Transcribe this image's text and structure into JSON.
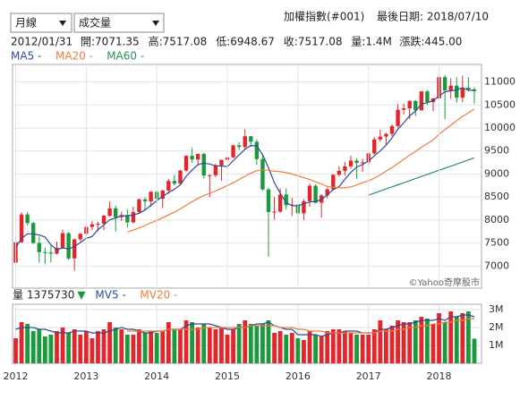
{
  "header": {
    "period_select": "月線",
    "indicator_select": "成交量",
    "title": "加權指數(#001)",
    "last_date": "最後日期: 2018/07/10",
    "info": [
      "2012/01/31",
      "開:7071.35",
      "高:7517.08",
      "低:6948.67",
      "收:7517.08",
      "量:1.4M",
      "漲跌:445.00"
    ],
    "watermark": "©Yahoo奇摩股市"
  },
  "chart_data": [
    {
      "type": "candlestick",
      "up_color": "#e3262b",
      "down_color": "#1a9a3d",
      "open": [
        7071.35,
        7517,
        8121,
        7933,
        7501,
        7301,
        7296,
        7270,
        7397,
        7715,
        7166,
        7580,
        7700,
        7850,
        7907,
        7919,
        8094,
        8254,
        8062,
        8108,
        7948,
        8173,
        8450,
        8407,
        8612,
        8462,
        8640,
        8849,
        8791,
        9075,
        9393,
        9315,
        9436,
        8966,
        8974,
        9187,
        9307,
        9361,
        9622,
        9586,
        9820,
        9701,
        9323,
        8665,
        8174,
        8181,
        8554,
        8320,
        8338,
        8145,
        8411,
        8744,
        8377,
        8536,
        8666,
        8984,
        9069,
        9166,
        9290,
        9240,
        9254,
        9448,
        9750,
        9812,
        9872,
        10041,
        10395,
        10427,
        10586,
        10383,
        10794,
        10560,
        10643,
        11104,
        10815,
        10919,
        10658,
        10875,
        10837
      ],
      "high": [
        7517.08,
        8170,
        8170,
        7960,
        7640,
        7400,
        7440,
        7530,
        7790,
        7740,
        7600,
        7720,
        7890,
        7980,
        7960,
        8110,
        8400,
        8310,
        8180,
        8230,
        8290,
        8470,
        8490,
        8630,
        8650,
        8660,
        8890,
        8980,
        9090,
        9410,
        9570,
        9440,
        9460,
        8990,
        9220,
        9310,
        9430,
        9630,
        9690,
        9970,
        9830,
        9750,
        9400,
        8700,
        8500,
        8690,
        8690,
        8480,
        8350,
        8450,
        8790,
        8780,
        8560,
        8710,
        8990,
        9170,
        9260,
        9400,
        9340,
        9330,
        9460,
        9800,
        9960,
        9890,
        10080,
        10520,
        10530,
        10600,
        10610,
        10800,
        10830,
        10650,
        11270,
        11150,
        11080,
        11100,
        11140,
        11100,
        10880
      ],
      "low": [
        6948.67,
        7500,
        7880,
        7480,
        7070,
        7050,
        7080,
        7250,
        7370,
        7130,
        6900,
        7540,
        7650,
        7780,
        7760,
        7780,
        8070,
        7750,
        7980,
        7840,
        7930,
        8150,
        8200,
        8290,
        8360,
        8260,
        8570,
        8750,
        8770,
        9050,
        9240,
        9180,
        8900,
        8500,
        8930,
        8850,
        9200,
        9340,
        9520,
        9530,
        9590,
        9200,
        8640,
        7203,
        8010,
        8160,
        8230,
        8090,
        7628,
        8000,
        8290,
        8360,
        8050,
        8470,
        8640,
        8950,
        8970,
        9120,
        8900,
        9050,
        9180,
        9420,
        9700,
        9630,
        9820,
        10010,
        10290,
        10190,
        10260,
        10380,
        10500,
        10360,
        10600,
        10189,
        10640,
        10550,
        10560,
        10790,
        10530
      ],
      "close": [
        7517.08,
        8121,
        7933,
        7501,
        7301,
        7296,
        7270,
        7397,
        7715,
        7166,
        7580,
        7700,
        7850,
        7907,
        7919,
        8094,
        8254,
        8062,
        8108,
        7948,
        8173,
        8450,
        8407,
        8612,
        8462,
        8640,
        8849,
        8791,
        9075,
        9393,
        9315,
        9436,
        8966,
        8974,
        9187,
        9307,
        9361,
        9622,
        9586,
        9820,
        9701,
        9323,
        8665,
        8174,
        8181,
        8554,
        8320,
        8338,
        8145,
        8411,
        8744,
        8377,
        8536,
        8666,
        8984,
        9069,
        9166,
        9290,
        9240,
        9254,
        9448,
        9750,
        9812,
        9872,
        10041,
        10395,
        10427,
        10586,
        10383,
        10794,
        10560,
        10643,
        11104,
        10815,
        10919,
        10658,
        10875,
        10837,
        10800
      ],
      "series": [
        {
          "name": "MA5 -",
          "color": "#2b4c9b",
          "values": [
            7400,
            7600,
            7700,
            7700,
            7675,
            7630,
            7460,
            7353,
            7396,
            7369,
            7426,
            7512,
            7602,
            7641,
            7791,
            7894,
            8005,
            8047,
            8087,
            8093,
            8109,
            8148,
            8217,
            8318,
            8421,
            8514,
            8594,
            8671,
            8763,
            8950,
            9085,
            9202,
            9237,
            9217,
            9176,
            9174,
            9159,
            9290,
            9413,
            9539,
            9618,
            9610,
            9419,
            9137,
            8809,
            8579,
            8379,
            8313,
            8308,
            8354,
            8392,
            8403,
            8443,
            8547,
            8661,
            8726,
            8884,
            9035,
            9150,
            9204,
            9280,
            9396,
            9501,
            9627,
            9785,
            9974,
            10109,
            10264,
            10366,
            10517,
            10550,
            10593,
            10697,
            10783,
            10808,
            10828,
            10874,
            10821,
            10818
          ]
        },
        {
          "name": "MA20 -",
          "color": "#f07c3a",
          "values": [
            null,
            null,
            null,
            null,
            null,
            null,
            null,
            null,
            null,
            null,
            null,
            null,
            null,
            null,
            null,
            null,
            null,
            null,
            null,
            7740,
            7780,
            7830,
            7880,
            7940,
            7990,
            8050,
            8110,
            8170,
            8240,
            8320,
            8400,
            8470,
            8530,
            8580,
            8630,
            8690,
            8750,
            8810,
            8880,
            8950,
            9020,
            9070,
            9090,
            9080,
            9060,
            9050,
            9030,
            9000,
            8960,
            8920,
            8880,
            8830,
            8780,
            8730,
            8710,
            8700,
            8700,
            8720,
            8760,
            8810,
            8850,
            8910,
            8980,
            9060,
            9140,
            9230,
            9320,
            9410,
            9490,
            9580,
            9660,
            9740,
            9860,
            9960,
            10060,
            10160,
            10250,
            10330,
            10410
          ]
        },
        {
          "name": "MA60 -",
          "color": "#2f9158",
          "values": [
            null,
            null,
            null,
            null,
            null,
            null,
            null,
            null,
            null,
            null,
            null,
            null,
            null,
            null,
            null,
            null,
            null,
            null,
            null,
            null,
            null,
            null,
            null,
            null,
            null,
            null,
            null,
            null,
            null,
            null,
            null,
            null,
            null,
            null,
            null,
            null,
            null,
            null,
            null,
            null,
            null,
            null,
            null,
            null,
            null,
            null,
            null,
            null,
            null,
            null,
            null,
            null,
            null,
            null,
            null,
            null,
            null,
            null,
            null,
            null,
            8540,
            8585,
            8630,
            8675,
            8720,
            8765,
            8810,
            8855,
            8900,
            8945,
            8990,
            9035,
            9080,
            9125,
            9170,
            9215,
            9260,
            9305,
            9350
          ]
        }
      ],
      "ylim": [
        6520,
        11380
      ],
      "yticks": [
        7000,
        7500,
        8000,
        8500,
        9000,
        9500,
        10000,
        10500,
        11000
      ],
      "grid": true
    },
    {
      "type": "bar",
      "label": "量",
      "current": 1375730,
      "trend_symbol": "▼",
      "trend_color": "#1a9a3d",
      "categories": [
        "2012",
        null,
        null,
        null,
        null,
        null,
        null,
        null,
        null,
        null,
        null,
        null,
        "2013",
        null,
        null,
        null,
        null,
        null,
        null,
        null,
        null,
        null,
        null,
        null,
        "2014",
        null,
        null,
        null,
        null,
        null,
        null,
        null,
        null,
        null,
        null,
        null,
        "2015",
        null,
        null,
        null,
        null,
        null,
        null,
        null,
        null,
        null,
        null,
        null,
        "2016",
        null,
        null,
        null,
        null,
        null,
        null,
        null,
        null,
        null,
        null,
        null,
        "2017",
        null,
        null,
        null,
        null,
        null,
        null,
        null,
        null,
        null,
        null,
        null,
        "2018",
        null,
        null,
        null,
        null,
        null,
        null
      ],
      "values": [
        1400000,
        2300000,
        2200000,
        1800000,
        1900000,
        1500000,
        1600000,
        1800000,
        2000000,
        1700000,
        1900000,
        1600000,
        1800000,
        1400000,
        1800000,
        1900000,
        2300000,
        2000000,
        1900000,
        1600000,
        1600000,
        1900000,
        1700000,
        1800000,
        1700000,
        1800000,
        2300000,
        1900000,
        1900000,
        2400000,
        2300000,
        2000000,
        2200000,
        2000000,
        1900000,
        2000000,
        1600000,
        1900000,
        2200000,
        2400000,
        2200000,
        2100000,
        2200000,
        2400000,
        1700000,
        1800000,
        1600000,
        1700000,
        1400000,
        1300000,
        1800000,
        1600000,
        1500000,
        1800000,
        1900000,
        1900000,
        1800000,
        1700000,
        1600000,
        1600000,
        1600000,
        1900000,
        2400000,
        1900000,
        2100000,
        2400000,
        2300000,
        2300000,
        2400000,
        2600000,
        2500000,
        2200000,
        2800000,
        2300000,
        2900000,
        2600000,
        2800000,
        2900000,
        1375730
      ],
      "series": [
        {
          "name": "MV5 -",
          "color": "#2b4c9b",
          "values": [
            1900000,
            2000000,
            2000000,
            2000000,
            1900000,
            1900000,
            1800000,
            1700000,
            1700000,
            1700000,
            1800000,
            1800000,
            1800000,
            1700000,
            1700000,
            1700000,
            1800000,
            1900000,
            2000000,
            1900000,
            1900000,
            1800000,
            1700000,
            1700000,
            1800000,
            1800000,
            1900000,
            1900000,
            1900000,
            2100000,
            2200000,
            2200000,
            2200000,
            2200000,
            2100000,
            2000000,
            1900000,
            1900000,
            2000000,
            2000000,
            2100000,
            2200000,
            2200000,
            2300000,
            2100000,
            2000000,
            1900000,
            1900000,
            1600000,
            1600000,
            1600000,
            1600000,
            1500000,
            1600000,
            1700000,
            1700000,
            1800000,
            1800000,
            1800000,
            1700000,
            1700000,
            1700000,
            1900000,
            1900000,
            2000000,
            2100000,
            2200000,
            2200000,
            2300000,
            2400000,
            2400000,
            2400000,
            2500000,
            2400000,
            2600000,
            2600000,
            2700000,
            2700000,
            2600000
          ]
        },
        {
          "name": "MV20 -",
          "color": "#f07c3a",
          "values": [
            null,
            null,
            null,
            null,
            null,
            null,
            null,
            null,
            null,
            null,
            null,
            null,
            null,
            null,
            null,
            null,
            null,
            null,
            null,
            1800000,
            1800000,
            1800000,
            1800000,
            1800000,
            1800000,
            1800000,
            1900000,
            1900000,
            1900000,
            1900000,
            1900000,
            1900000,
            2000000,
            2000000,
            2000000,
            2000000,
            2000000,
            2000000,
            2000000,
            2000000,
            2100000,
            2100000,
            2100000,
            2100000,
            2100000,
            2000000,
            2000000,
            2000000,
            1900000,
            1900000,
            1800000,
            1800000,
            1800000,
            1700000,
            1700000,
            1700000,
            1700000,
            1700000,
            1700000,
            1700000,
            1700000,
            1700000,
            1800000,
            1800000,
            1800000,
            1900000,
            1900000,
            2000000,
            2000000,
            2100000,
            2100000,
            2200000,
            2200000,
            2300000,
            2300000,
            2400000,
            2400000,
            2500000,
            2500000
          ]
        }
      ],
      "ylim": [
        0,
        3300000
      ],
      "yticks": [
        {
          "value": 1000000,
          "label": "1M"
        },
        {
          "value": 2000000,
          "label": "2M"
        },
        {
          "value": 3000000,
          "label": "3M"
        }
      ],
      "grid": true
    }
  ]
}
